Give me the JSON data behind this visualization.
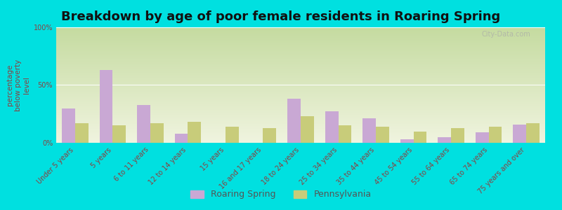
{
  "title": "Breakdown by age of poor female residents in Roaring Spring",
  "ylabel": "percentage\nbelow poverty\nlevel",
  "categories": [
    "Under 5 years",
    "5 years",
    "6 to 11 years",
    "12 to 14 years",
    "15 years",
    "16 and 17 years",
    "18 to 24 years",
    "25 to 34 years",
    "35 to 44 years",
    "45 to 54 years",
    "55 to 64 years",
    "65 to 74 years",
    "75 years and over"
  ],
  "roaring_spring": [
    30,
    63,
    33,
    8,
    0,
    0,
    38,
    27,
    21,
    3,
    5,
    9,
    16
  ],
  "pennsylvania": [
    17,
    15,
    17,
    18,
    14,
    13,
    23,
    15,
    14,
    10,
    13,
    14,
    17
  ],
  "roaring_spring_color": "#c9a8d4",
  "pennsylvania_color": "#c8cc7a",
  "background_outer": "#00e0e0",
  "ylim": [
    0,
    100
  ],
  "yticks": [
    0,
    50,
    100
  ],
  "ytick_labels": [
    "0%",
    "50%",
    "100%"
  ],
  "bar_width": 0.35,
  "legend_labels": [
    "Roaring Spring",
    "Pennsylvania"
  ],
  "title_fontsize": 13,
  "axis_label_fontsize": 7.5,
  "tick_label_fontsize": 7,
  "legend_fontsize": 9,
  "watermark": "City-Data.com",
  "label_color": "#8b4040"
}
